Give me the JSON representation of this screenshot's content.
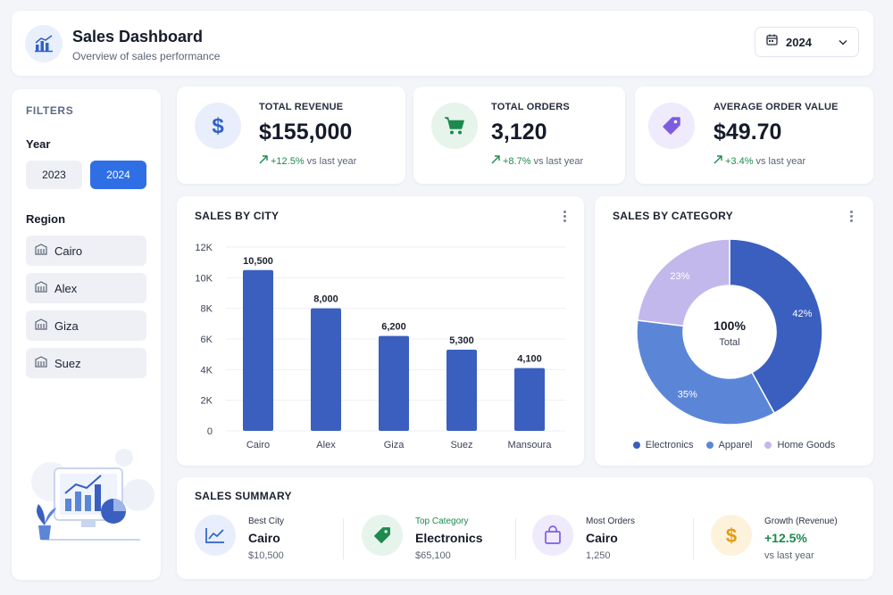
{
  "header": {
    "title": "Sales Dashboard",
    "subtitle": "Overview of sales performance",
    "year_select": "2024"
  },
  "sidebar": {
    "filters_title": "FILTERS",
    "year_label": "Year",
    "years": [
      {
        "label": "2023",
        "active": false
      },
      {
        "label": "2024",
        "active": true
      }
    ],
    "region_label": "Region",
    "regions": [
      "Cairo",
      "Alex",
      "Giza",
      "Suez"
    ]
  },
  "kpis": [
    {
      "label": "TOTAL REVENUE",
      "value": "$155,000",
      "change": "+12.5%",
      "suffix": "vs last year",
      "icon": "dollar-icon"
    },
    {
      "label": "TOTAL ORDERS",
      "value": "3,120",
      "change": "+8.7%",
      "suffix": "vs last year",
      "icon": "cart-icon"
    },
    {
      "label": "AVERAGE ORDER VALUE",
      "value": "$49.70",
      "change": "+3.4%",
      "suffix": "vs last year",
      "icon": "tag-icon"
    }
  ],
  "colors": {
    "accent": "#2f6fe6",
    "bar": "#3a5fbf",
    "positive": "#1d8a4e",
    "electronics": "#3a5fbf",
    "apparel": "#5b86d8",
    "home_goods": "#c3b8ec"
  },
  "city_chart": {
    "title": "SALES BY CITY",
    "chart_data": {
      "type": "bar",
      "categories": [
        "Cairo",
        "Alex",
        "Giza",
        "Suez",
        "Mansoura"
      ],
      "values": [
        10500,
        8000,
        6200,
        5300,
        4100
      ],
      "value_labels": [
        "10,500",
        "8,000",
        "6,200",
        "5,300",
        "4,100"
      ],
      "ylim": [
        0,
        12000
      ],
      "y_ticks": [
        0,
        2000,
        4000,
        6000,
        8000,
        10000,
        12000
      ],
      "y_tick_labels": [
        "0",
        "2K",
        "4K",
        "6K",
        "8K",
        "10K",
        "12K"
      ],
      "grid": true,
      "xlabel": "",
      "ylabel": ""
    }
  },
  "category_chart": {
    "title": "SALES BY CATEGORY",
    "center_value": "100%",
    "center_label": "Total",
    "chart_data": {
      "type": "pie",
      "labels": [
        "Electronics",
        "Apparel",
        "Home Goods"
      ],
      "values": [
        42,
        35,
        23
      ],
      "value_labels": [
        "42%",
        "35%",
        "23%"
      ],
      "donut": true,
      "legend": "bottom"
    }
  },
  "summary": {
    "title": "SALES SUMMARY",
    "items": [
      {
        "label": "Best City",
        "value": "Cairo",
        "sub": "$10,500",
        "icon": "trend-chart-icon"
      },
      {
        "label": "Top Category",
        "value": "Electronics",
        "sub": "$65,100",
        "icon": "tag-icon"
      },
      {
        "label": "Most Orders",
        "value": "Cairo",
        "sub": "1,250",
        "icon": "shopping-bag-icon"
      },
      {
        "label": "Growth (Revenue)",
        "value": "+12.5%",
        "sub": "vs last year",
        "icon": "dollar-icon"
      }
    ]
  }
}
